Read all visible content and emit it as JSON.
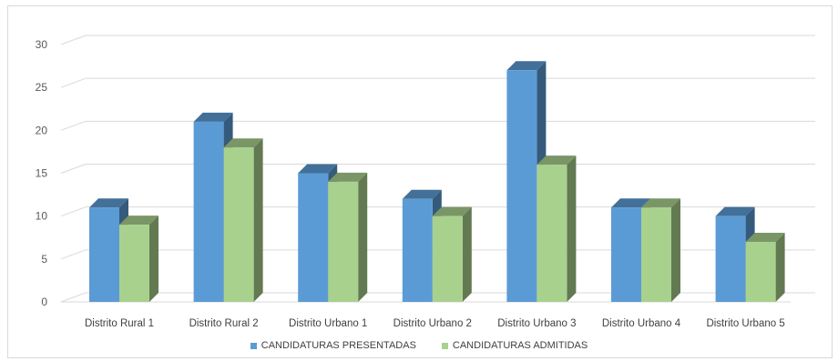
{
  "chart_data": {
    "type": "bar",
    "categories": [
      "Distrito Rural 1",
      "Distrito Rural 2",
      "Distrito Urbano 1",
      "Distrito Urbano 2",
      "Distrito Urbano 3",
      "Distrito Urbano 4",
      "Distrito Urbano 5"
    ],
    "series": [
      {
        "name": "CANDIDATURAS PRESENTADAS",
        "values": [
          11,
          21,
          15,
          12,
          27,
          11,
          10
        ],
        "color": "#5b9bd5"
      },
      {
        "name": "CANDIDATURAS ADMITIDAS",
        "values": [
          9,
          18,
          14,
          10,
          16,
          11,
          7
        ],
        "color": "#a9d18e"
      }
    ],
    "yticks": [
      "0",
      "5",
      "10",
      "15",
      "20",
      "25",
      "30"
    ],
    "ylim": [
      0,
      30
    ],
    "grid": true,
    "legend_position": "bottom",
    "style": "3d-clustered-column"
  }
}
